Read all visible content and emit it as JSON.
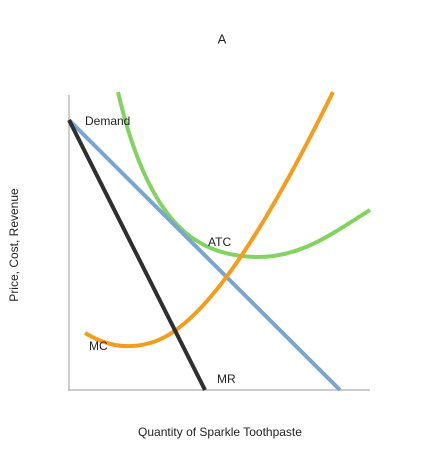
{
  "title": "A",
  "axes": {
    "x_label": "Quantity of Sparkle Toothpaste",
    "y_label": "Price, Cost, Revenue"
  },
  "curves": [
    {
      "label": "Demand"
    },
    {
      "label": "MR"
    },
    {
      "label": "ATC"
    },
    {
      "label": "MC"
    }
  ]
}
